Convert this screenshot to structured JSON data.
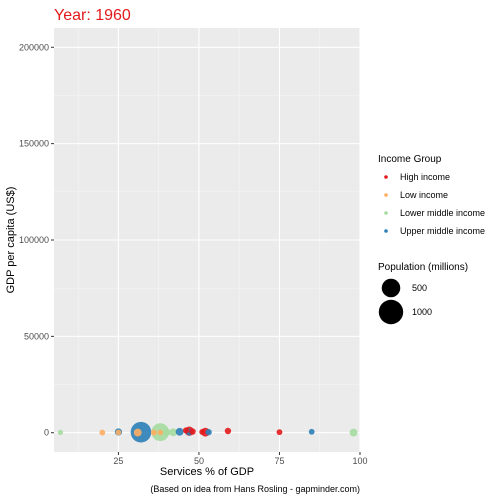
{
  "chart_data": {
    "type": "scatter",
    "title": "Year: 1960",
    "xlabel": "Services % of GDP",
    "ylabel": "GDP per capita (US$)",
    "caption": "(Based on idea from Hans Rosling - gapminder.com)",
    "xlim": [
      5,
      100
    ],
    "ylim": [
      -10000,
      210000
    ],
    "x_ticks": [
      25,
      50,
      75,
      100
    ],
    "x_tick_labels": [
      "25",
      "50",
      "75",
      "100"
    ],
    "y_ticks": [
      0,
      50000,
      100000,
      150000,
      200000
    ],
    "y_tick_labels": [
      "0",
      "50000",
      "100000",
      "150000",
      "200000"
    ],
    "grid": true,
    "legend_position": "right",
    "legend_color_title": "Income Group",
    "legend_size_title": "Population (millions)",
    "size_legend": [
      {
        "label": "500",
        "value": 500
      },
      {
        "label": "1000",
        "value": 1000
      }
    ],
    "colors": {
      "High income": "#e31a1c",
      "Low income": "#fdae61",
      "Lower middle income": "#a6dba0",
      "Upper middle income": "#2c7fb8"
    },
    "series": [
      {
        "name": "High income",
        "points": [
          {
            "x": 46,
            "y": 1200,
            "pop": 8
          },
          {
            "x": 47,
            "y": 800,
            "pop": 60
          },
          {
            "x": 48,
            "y": 600,
            "pop": 10
          },
          {
            "x": 51,
            "y": 400,
            "pop": 5
          },
          {
            "x": 52,
            "y": 300,
            "pop": 50
          },
          {
            "x": 59,
            "y": 900,
            "pop": 10
          },
          {
            "x": 75,
            "y": 300,
            "pop": 5
          }
        ]
      },
      {
        "name": "Low income",
        "points": [
          {
            "x": 20,
            "y": 100,
            "pop": 5
          },
          {
            "x": 25,
            "y": 150,
            "pop": 4
          },
          {
            "x": 31,
            "y": 100,
            "pop": 30
          },
          {
            "x": 36,
            "y": 120,
            "pop": 6
          },
          {
            "x": 38,
            "y": 100,
            "pop": 4
          }
        ]
      },
      {
        "name": "Lower middle income",
        "points": [
          {
            "x": 7,
            "y": 200,
            "pop": 2
          },
          {
            "x": 38,
            "y": 300,
            "pop": 450
          },
          {
            "x": 40,
            "y": 300,
            "pop": 20
          },
          {
            "x": 42,
            "y": 250,
            "pop": 30
          },
          {
            "x": 98,
            "y": 100,
            "pop": 30
          }
        ]
      },
      {
        "name": "Upper middle income",
        "points": [
          {
            "x": 25,
            "y": 400,
            "pop": 20
          },
          {
            "x": 32,
            "y": 300,
            "pop": 660
          },
          {
            "x": 44,
            "y": 500,
            "pop": 30
          },
          {
            "x": 47,
            "y": 400,
            "pop": 20
          },
          {
            "x": 53,
            "y": 300,
            "pop": 10
          },
          {
            "x": 85,
            "y": 500,
            "pop": 5
          }
        ]
      }
    ]
  }
}
